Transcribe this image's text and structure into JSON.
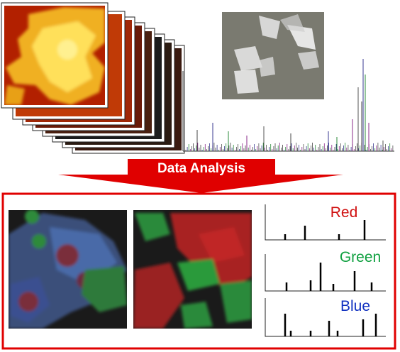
{
  "arrow": {
    "label": "Data Analysis",
    "color": "#e00000"
  },
  "result_box": {
    "border_color": "#e00000"
  },
  "top_images": [
    {
      "kind": "map",
      "palette": "yellow-red"
    },
    {
      "kind": "photo",
      "palette": "grayscale-crystals"
    }
  ],
  "bottom_images": [
    {
      "kind": "map",
      "channels": [
        "red",
        "green",
        "blue"
      ]
    },
    {
      "kind": "map",
      "channels": [
        "red",
        "green"
      ]
    }
  ],
  "spectra": [
    {
      "label": "Red",
      "color": "#d01010"
    },
    {
      "label": "Green",
      "color": "#10a040"
    },
    {
      "label": "Blue",
      "color": "#1030c0"
    }
  ]
}
